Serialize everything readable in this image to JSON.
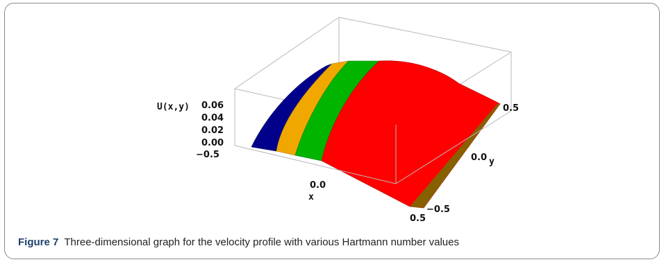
{
  "chart_data": {
    "type": "surface3d",
    "zlabel": "U(x,y)",
    "xlabel": "x",
    "ylabel": "y",
    "xticks": [
      "−0.5",
      "0.0",
      "0.5"
    ],
    "yticks": [
      "−0.5",
      "0.0",
      "0.5"
    ],
    "zticks": [
      "0.00",
      "0.02",
      "0.04",
      "0.06"
    ],
    "xlim": [
      -0.5,
      0.5
    ],
    "ylim": [
      -0.5,
      0.5
    ],
    "zlim": [
      0,
      0.06
    ],
    "peak_u": 0.062,
    "series_colors": [
      "#00008b",
      "#f0a800",
      "#00b400",
      "#ff0000"
    ]
  },
  "caption": {
    "label": "Figure 7",
    "text": "Three-dimensional graph for the velocity profile with various Hartmann number values"
  }
}
